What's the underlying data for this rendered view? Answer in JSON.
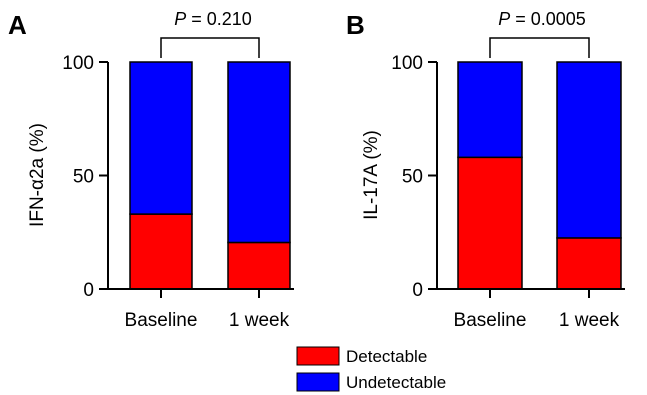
{
  "chart_data": [
    {
      "type": "bar",
      "stacked": true,
      "panel": "A",
      "ylabel": "IFN-α2a (%)",
      "ylim": [
        0,
        100
      ],
      "yticks": [
        "0",
        "50",
        "100"
      ],
      "categories": [
        "Baseline",
        "1 week"
      ],
      "series": [
        {
          "name": "Detectable",
          "values": [
            33,
            20.5
          ]
        },
        {
          "name": "Undetectable",
          "values": [
            67,
            79.5
          ]
        }
      ],
      "annotation": {
        "prefix": "P",
        "text": " = 0.210"
      }
    },
    {
      "type": "bar",
      "stacked": true,
      "panel": "B",
      "ylabel": "IL-17A (%)",
      "ylim": [
        0,
        100
      ],
      "yticks": [
        "0",
        "50",
        "100"
      ],
      "categories": [
        "Baseline",
        "1 week"
      ],
      "series": [
        {
          "name": "Detectable",
          "values": [
            58,
            22.5
          ]
        },
        {
          "name": "Undetectable",
          "values": [
            42,
            77.5
          ]
        }
      ],
      "annotation": {
        "prefix": "P",
        "text": " = 0.0005"
      }
    }
  ],
  "legend": {
    "placement": "bottom-center",
    "items": [
      {
        "label": "Detectable",
        "color": "#ff0000"
      },
      {
        "label": "Undetectable",
        "color": "#0000ff"
      }
    ]
  },
  "colors": {
    "Detectable": "#ff0000",
    "Undetectable": "#0000ff"
  }
}
